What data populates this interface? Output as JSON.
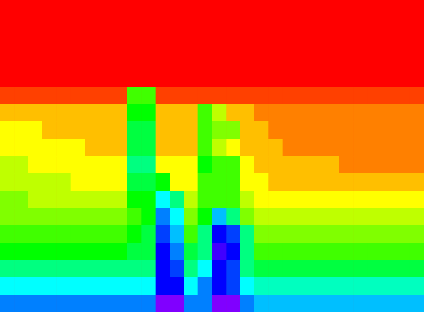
{
  "chart_data": {
    "type": "heatmap",
    "tick_labels": false,
    "color_range": [
      0,
      10
    ],
    "cells": [
      [
        0,
        0,
        0,
        0,
        0,
        0,
        0,
        0,
        0,
        0,
        0,
        0,
        0,
        0,
        0,
        0,
        0,
        0,
        0,
        0,
        0,
        0,
        0,
        0,
        0,
        0,
        0,
        0,
        0,
        0
      ],
      [
        0,
        0,
        0,
        0,
        0,
        0,
        0,
        0,
        0,
        0,
        0,
        0,
        0,
        0,
        0,
        0,
        0,
        0,
        0,
        0,
        0,
        0,
        0,
        0,
        0,
        0,
        0,
        0,
        0,
        0
      ],
      [
        0,
        0,
        0,
        0,
        0,
        0,
        0,
        0,
        0,
        0,
        0,
        0,
        0,
        0,
        0,
        0,
        0,
        0,
        0,
        0,
        0,
        0,
        0,
        0,
        0,
        0,
        0,
        0,
        0,
        0
      ],
      [
        0,
        0,
        0,
        0,
        0,
        0,
        0,
        0,
        0,
        0,
        0,
        0,
        0,
        0,
        0,
        0,
        0,
        0,
        0,
        0,
        0,
        0,
        0,
        0,
        0,
        0,
        0,
        0,
        0,
        0
      ],
      [
        0,
        0,
        0,
        0,
        0,
        0,
        0,
        0,
        0,
        0,
        0,
        0,
        0,
        0,
        0,
        0,
        0,
        0,
        0,
        0,
        0,
        0,
        0,
        0,
        0,
        0,
        0,
        0,
        0,
        0
      ],
      [
        0.5,
        0.5,
        0.5,
        0.5,
        0.5,
        0.5,
        0.5,
        0.5,
        0.5,
        3.5,
        3.5,
        0.5,
        0.5,
        0.5,
        0.5,
        0.5,
        0.5,
        0.5,
        0.5,
        0.5,
        0.5,
        0.5,
        0.5,
        0.5,
        0.5,
        0.5,
        0.5,
        0.5,
        0.5,
        0.5
      ],
      [
        1.5,
        1.5,
        1.5,
        1.5,
        1.5,
        1.5,
        1.5,
        1.5,
        1.5,
        4,
        4,
        1.5,
        1.5,
        1.5,
        3.5,
        2.5,
        1.5,
        1.5,
        1,
        1,
        1,
        1,
        1,
        1,
        1,
        1,
        1,
        1,
        1,
        1
      ],
      [
        2,
        2,
        2,
        1.5,
        1.5,
        1.5,
        1.5,
        1.5,
        1.5,
        4.5,
        4.5,
        1.5,
        1.5,
        1.5,
        3.5,
        3,
        3,
        1.5,
        1.5,
        1,
        1,
        1,
        1,
        1,
        1,
        1,
        1,
        1,
        1,
        1
      ],
      [
        2,
        2,
        2,
        2,
        2,
        2,
        1.5,
        1.5,
        1.5,
        4.5,
        4.5,
        1.5,
        1.5,
        1.5,
        3.5,
        2.5,
        2,
        1.5,
        1.5,
        1.5,
        1,
        1,
        1,
        1,
        1,
        1,
        1,
        1,
        1,
        1
      ],
      [
        2.5,
        2.5,
        2,
        2,
        2,
        2,
        2,
        2,
        2,
        5,
        5,
        2,
        2,
        2,
        4,
        3.5,
        3.5,
        2,
        1.5,
        1.5,
        1.5,
        1.5,
        1.5,
        1.5,
        1,
        1,
        1,
        1,
        1,
        1
      ],
      [
        2.5,
        2.5,
        2.5,
        2.5,
        2.5,
        2,
        2,
        2,
        2,
        4.5,
        4.5,
        4,
        2,
        2,
        3.5,
        3.5,
        3.5,
        2,
        2,
        1.5,
        1.5,
        1.5,
        1.5,
        1.5,
        1.5,
        1.5,
        1.5,
        1.5,
        1.5,
        1.5
      ],
      [
        3,
        3,
        2.5,
        2.5,
        2.5,
        2.5,
        2.5,
        2.5,
        2.5,
        4,
        4,
        6,
        5,
        2.5,
        3.5,
        3.5,
        3.5,
        2.5,
        2,
        2,
        2,
        2,
        2,
        2,
        2,
        2,
        2,
        2,
        2,
        2
      ],
      [
        3,
        3,
        3,
        3,
        3,
        3,
        3,
        3,
        3,
        3.5,
        4,
        7,
        6,
        3,
        4,
        6.5,
        5,
        3,
        2.5,
        2.5,
        2.5,
        2.5,
        2.5,
        2.5,
        2.5,
        2.5,
        2.5,
        2.5,
        2.5,
        2.5
      ],
      [
        3.5,
        3.5,
        3.5,
        3.5,
        3.5,
        3.5,
        3.5,
        3.5,
        3.5,
        4,
        4.5,
        7.5,
        6.5,
        3.5,
        5,
        8,
        7.5,
        5,
        3,
        3,
        3,
        3,
        3,
        3,
        3,
        3,
        3,
        3,
        3,
        3
      ],
      [
        4,
        4,
        4,
        4,
        4,
        4,
        4,
        4,
        4,
        4.5,
        4.5,
        8,
        7,
        4.5,
        5,
        8.5,
        8,
        5,
        3.5,
        3.5,
        3.5,
        3.5,
        3.5,
        3.5,
        3.5,
        3.5,
        3.5,
        3.5,
        3.5,
        3.5
      ],
      [
        5,
        5,
        5,
        5,
        5,
        5,
        5,
        5,
        5,
        5,
        5,
        8,
        7.5,
        5,
        6,
        8,
        7.5,
        5,
        4.5,
        4.5,
        4.5,
        4.5,
        4.5,
        4.5,
        4.5,
        4.5,
        4.5,
        4.5,
        4.5,
        4.5
      ],
      [
        6,
        6,
        6,
        6,
        6,
        6,
        6,
        6,
        6,
        6,
        6,
        8,
        8,
        6,
        7,
        8,
        7.5,
        6,
        5.5,
        5.5,
        5.5,
        5.5,
        5.5,
        5.5,
        5.5,
        5.5,
        5.5,
        5.5,
        5.5,
        5.5
      ],
      [
        7,
        7,
        7,
        7,
        7,
        7,
        7,
        7,
        7,
        7,
        7,
        9,
        9,
        7,
        7,
        9,
        9,
        7,
        6.5,
        6.5,
        6.5,
        6.5,
        6.5,
        6.5,
        6.5,
        6.5,
        6.5,
        6.5,
        6.5,
        6.5
      ]
    ]
  }
}
